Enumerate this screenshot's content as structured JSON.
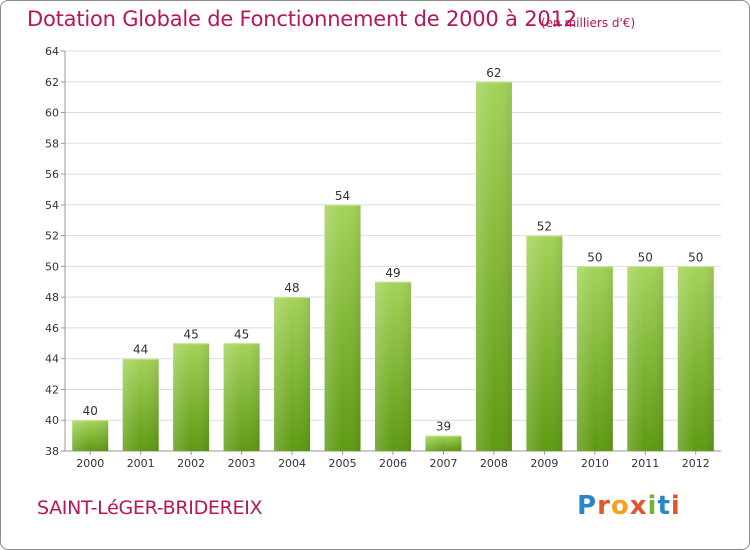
{
  "chart_data": {
    "type": "bar",
    "title": "Dotation Globale de Fonctionnement de 2000 à 2012",
    "subtitle": "(en milliers d'€)",
    "categories": [
      "2000",
      "2001",
      "2002",
      "2003",
      "2004",
      "2005",
      "2006",
      "2007",
      "2008",
      "2009",
      "2010",
      "2011",
      "2012"
    ],
    "values": [
      40,
      44,
      45,
      45,
      48,
      54,
      49,
      39,
      62,
      52,
      50,
      50,
      50
    ],
    "ylim": [
      38,
      64
    ],
    "yticks": [
      38,
      40,
      42,
      44,
      46,
      48,
      50,
      52,
      54,
      56,
      58,
      60,
      62,
      64
    ],
    "xlabel": "",
    "ylabel": "",
    "grid": true,
    "bar_color_top": "#a4d35a",
    "bar_color_bottom": "#5e9a12",
    "grid_color": "#dddddd"
  },
  "footer": {
    "commune": "SAINT-LéGER-BRIDEREIX",
    "logo_text": "Proxiti",
    "logo_letters": [
      {
        "ch": "P",
        "color": "#2a86c8"
      },
      {
        "ch": "r",
        "color": "#e0572a"
      },
      {
        "ch": "o",
        "color": "#f4a11f"
      },
      {
        "ch": "x",
        "color": "#e0572a"
      },
      {
        "ch": "i",
        "color": "#7ab03a"
      },
      {
        "ch": "t",
        "color": "#2a86c8"
      },
      {
        "ch": "i",
        "color": "#e0572a"
      }
    ]
  }
}
